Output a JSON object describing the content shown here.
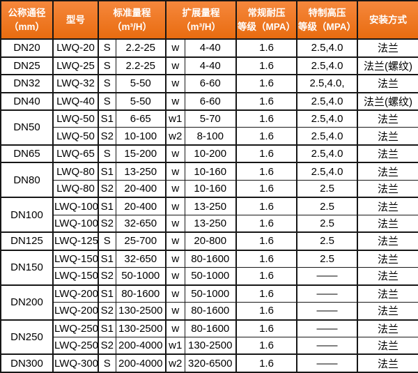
{
  "colors": {
    "header_bg_top": "#f5873c",
    "header_bg_bottom": "#e96c10",
    "header_text": "#ffffff",
    "border": "#161616",
    "body_text": "#000000",
    "body_bg": "#ffffff"
  },
  "table": {
    "header": {
      "columns": [
        {
          "id": "nominal-diameter",
          "label": "公称通径\n（mm）"
        },
        {
          "id": "model",
          "label": "型号"
        },
        {
          "id": "standard-range",
          "label": "标准量程\n（m³/H）"
        },
        {
          "id": "extended-range",
          "label": "扩展量程\n（m³/H）"
        },
        {
          "id": "standard-pressure",
          "label": "常规耐压\n等级（MPA）"
        },
        {
          "id": "high-pressure",
          "label": "特制高压\n等级（MPA）"
        },
        {
          "id": "installation",
          "label": "安装方式"
        }
      ]
    },
    "rows": [
      {
        "group_start": true,
        "dn": "DN20",
        "dn_span": 1,
        "model": "LWQ-20",
        "s": "S",
        "s_range": "2.2-25",
        "w": "w",
        "w_range": "4-40",
        "pressure": "1.6",
        "high_pressure": "2.5,4.0",
        "install": "法兰"
      },
      {
        "group_start": true,
        "dn": "DN25",
        "dn_span": 1,
        "model": "LWQ-25",
        "s": "S",
        "s_range": "2.2-25",
        "w": "w",
        "w_range": "4-40",
        "pressure": "1.6",
        "high_pressure": "2.5,4.0",
        "install": "法兰(螺纹)"
      },
      {
        "group_start": true,
        "dn": "DN32",
        "dn_span": 1,
        "model": "LWQ-32",
        "s": "S",
        "s_range": "5-50",
        "w": "w",
        "w_range": "6-60",
        "pressure": "1.6",
        "high_pressure": "2.5,4.0,",
        "install": "法兰"
      },
      {
        "group_start": true,
        "dn": "DN40",
        "dn_span": 1,
        "model": "LWQ-40",
        "s": "S",
        "s_range": "5-50",
        "w": "w",
        "w_range": "6-60",
        "pressure": "1.6",
        "high_pressure": "2.5,4.0",
        "install": "法兰(螺纹)"
      },
      {
        "group_start": true,
        "dn": "DN50",
        "dn_span": 2,
        "model": "LWQ-50",
        "s": "S1",
        "s_range": "6-65",
        "w": "w1",
        "w_range": "5-70",
        "pressure": "1.6",
        "high_pressure": "2.5,4.0",
        "install": "法兰"
      },
      {
        "group_start": false,
        "model": "LWQ-50",
        "s": "S2",
        "s_range": "10-100",
        "w": "w2",
        "w_range": "8-100",
        "pressure": "1.6",
        "high_pressure": "2.5,4.0",
        "install": "法兰"
      },
      {
        "group_start": true,
        "dn": "DN65",
        "dn_span": 1,
        "model": "LWQ-65",
        "s": "S",
        "s_range": "15-200",
        "w": "w",
        "w_range": "10-200",
        "pressure": "1.6",
        "high_pressure": "2.5,4.0",
        "install": "法兰"
      },
      {
        "group_start": true,
        "dn": "DN80",
        "dn_span": 2,
        "model": "LWQ-80",
        "s": "S1",
        "s_range": "13-250",
        "w": "w",
        "w_range": "10-160",
        "pressure": "1.6",
        "high_pressure": "2.5,4.0",
        "install": "法兰"
      },
      {
        "group_start": false,
        "model": "LWQ-80",
        "s": "S2",
        "s_range": "20-400",
        "w": "w",
        "w_range": "10-160",
        "pressure": "1.6",
        "high_pressure": "2.5",
        "install": "法兰"
      },
      {
        "group_start": true,
        "dn": "DN100",
        "dn_span": 2,
        "model": "LWQ-100",
        "s": "S1",
        "s_range": "20-400",
        "w": "w",
        "w_range": "13-250",
        "pressure": "1.6",
        "high_pressure": "2.5",
        "install": "法兰"
      },
      {
        "group_start": false,
        "model": "LWQ-100",
        "s": "S2",
        "s_range": "32-650",
        "w": "w",
        "w_range": "13-250",
        "pressure": "1.6",
        "high_pressure": "2.5",
        "install": "法兰"
      },
      {
        "group_start": true,
        "dn": "DN125",
        "dn_span": 1,
        "model": "LWQ-125",
        "s": "S",
        "s_range": "25-700",
        "w": "w",
        "w_range": "20-800",
        "pressure": "1.6",
        "high_pressure": "2.5",
        "install": "法兰"
      },
      {
        "group_start": true,
        "dn": "DN150",
        "dn_span": 2,
        "model": "LWQ-150",
        "s": "S1",
        "s_range": "32-650",
        "w": "w",
        "w_range": "80-1600",
        "pressure": "1.6",
        "high_pressure": "2.5",
        "install": "法兰"
      },
      {
        "group_start": false,
        "model": "LWQ-150",
        "s": "S2",
        "s_range": "50-1000",
        "w": "w",
        "w_range": "50-1000",
        "pressure": "1.6",
        "high_pressure": "——",
        "install": "法兰"
      },
      {
        "group_start": true,
        "dn": "DN200",
        "dn_span": 2,
        "model": "LWQ-200",
        "s": "S1",
        "s_range": "80-1600",
        "w": "w",
        "w_range": "50-1000",
        "pressure": "1.6",
        "high_pressure": "——",
        "install": "法兰"
      },
      {
        "group_start": false,
        "model": "LWQ-200",
        "s": "S2",
        "s_range": "130-2500",
        "w": "w",
        "w_range": "80-1600",
        "pressure": "1.6",
        "high_pressure": "——",
        "install": "法兰"
      },
      {
        "group_start": true,
        "dn": "DN250",
        "dn_span": 2,
        "model": "LWQ-250",
        "s": "S1",
        "s_range": "130-2500",
        "w": "w",
        "w_range": "80-1600",
        "pressure": "1.6",
        "high_pressure": "——",
        "install": "法兰"
      },
      {
        "group_start": false,
        "model": "LWQ-250",
        "s": "S2",
        "s_range": "200-4000",
        "w": "w1",
        "w_range": "130-2500",
        "pressure": "1.6",
        "high_pressure": "——",
        "install": "法兰"
      },
      {
        "group_start": true,
        "dn": "DN300",
        "dn_span": 1,
        "model": "LWQ-300",
        "s": "S",
        "s_range": "200-4000",
        "w": "w2",
        "w_range": "320-6500",
        "pressure": "1.6",
        "high_pressure": "——",
        "install": "法兰"
      }
    ]
  }
}
